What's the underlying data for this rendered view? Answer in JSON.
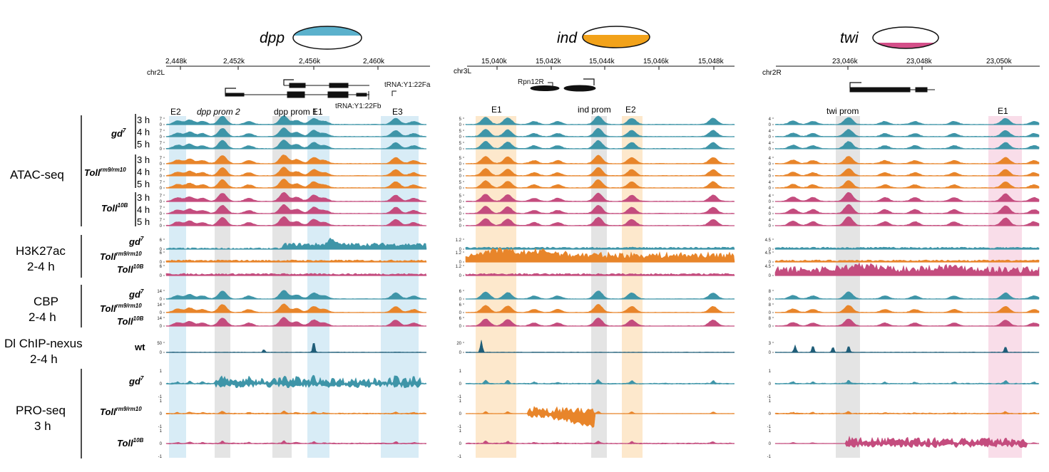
{
  "colors": {
    "gd7": "#3e95a8",
    "toll_rm9": "#e8852a",
    "toll10b": "#c44c7e",
    "dl": "#1f5d78",
    "shade_blue": "#d8ecf6",
    "shade_orange": "#fde8cc",
    "shade_pink": "#f9dde9",
    "shade_grey": "#e4e4e4",
    "embryo_dpp": "#5bb1cc",
    "embryo_ind": "#f2a21a",
    "embryo_twi": "#d44f89"
  },
  "panels": [
    {
      "gene": "dpp",
      "chrom": "chr2L",
      "ticks": [
        "2,448k",
        "2,452k",
        "2,456k",
        "2,460k"
      ],
      "genes": [
        "tRNA:Y1:22Fa",
        "tRNA:Y1:22Fb"
      ],
      "regions": [
        "E2",
        "dpp prom 2",
        "dpp prom 1",
        "E1",
        "E3"
      ],
      "atac_ymax": [
        "7",
        "7",
        "7",
        "7",
        "7",
        "7",
        "7",
        "7",
        "7"
      ],
      "h3_ymax": [
        "6",
        "6",
        "6"
      ],
      "cbp_ymax": [
        "14",
        "14",
        "14"
      ],
      "dl_ymax": "50",
      "pro_ymax": "1",
      "pro_ymin": "-1"
    },
    {
      "gene": "ind",
      "chrom": "chr3L",
      "ticks": [
        "15,040k",
        "15,042k",
        "15,044k",
        "15,046k",
        "15,048k"
      ],
      "genes": [
        "Rpn12R"
      ],
      "regions": [
        "E1",
        "ind prom",
        "E2"
      ],
      "atac_ymax": [
        "5",
        "5",
        "5",
        "5",
        "5",
        "5",
        "5",
        "5",
        "5"
      ],
      "h3_ymax": [
        "1.2",
        "1.2",
        "1.2"
      ],
      "cbp_ymax": [
        "6",
        "6",
        "6"
      ],
      "dl_ymax": "20",
      "pro_ymax": "1",
      "pro_ymin": "-1"
    },
    {
      "gene": "twi",
      "chrom": "chr2R",
      "ticks": [
        "23,046k",
        "23,048k",
        "23,050k"
      ],
      "genes": [],
      "regions": [
        "twi prom",
        "E1"
      ],
      "atac_ymax": [
        "4",
        "4",
        "4",
        "4",
        "4",
        "4",
        "4",
        "4",
        "4"
      ],
      "h3_ymax": [
        "4.5",
        "4.5",
        "4.5"
      ],
      "cbp_ymax": [
        "8",
        "8",
        "8"
      ],
      "dl_ymax": "3",
      "pro_ymax": "1",
      "pro_ymin": "-1"
    }
  ],
  "assays": {
    "atac": "ATAC-seq",
    "h3": [
      "H3K27ac",
      "2-4 h"
    ],
    "cbp": [
      "CBP",
      "2-4 h"
    ],
    "dl": [
      "Dl ChIP-nexus",
      "2-4 h"
    ],
    "pro": [
      "PRO-seq",
      "3 h"
    ]
  },
  "conditions": {
    "gd7": "gd",
    "gd7_sup": "7",
    "toll_rm9": "Toll",
    "toll_rm9_sup": "rm9/rm10",
    "toll10b": "Toll",
    "toll10b_sup": "10B",
    "wt": "wt"
  },
  "timepoints": [
    "3 h",
    "4 h",
    "5 h"
  ],
  "zero": "0"
}
